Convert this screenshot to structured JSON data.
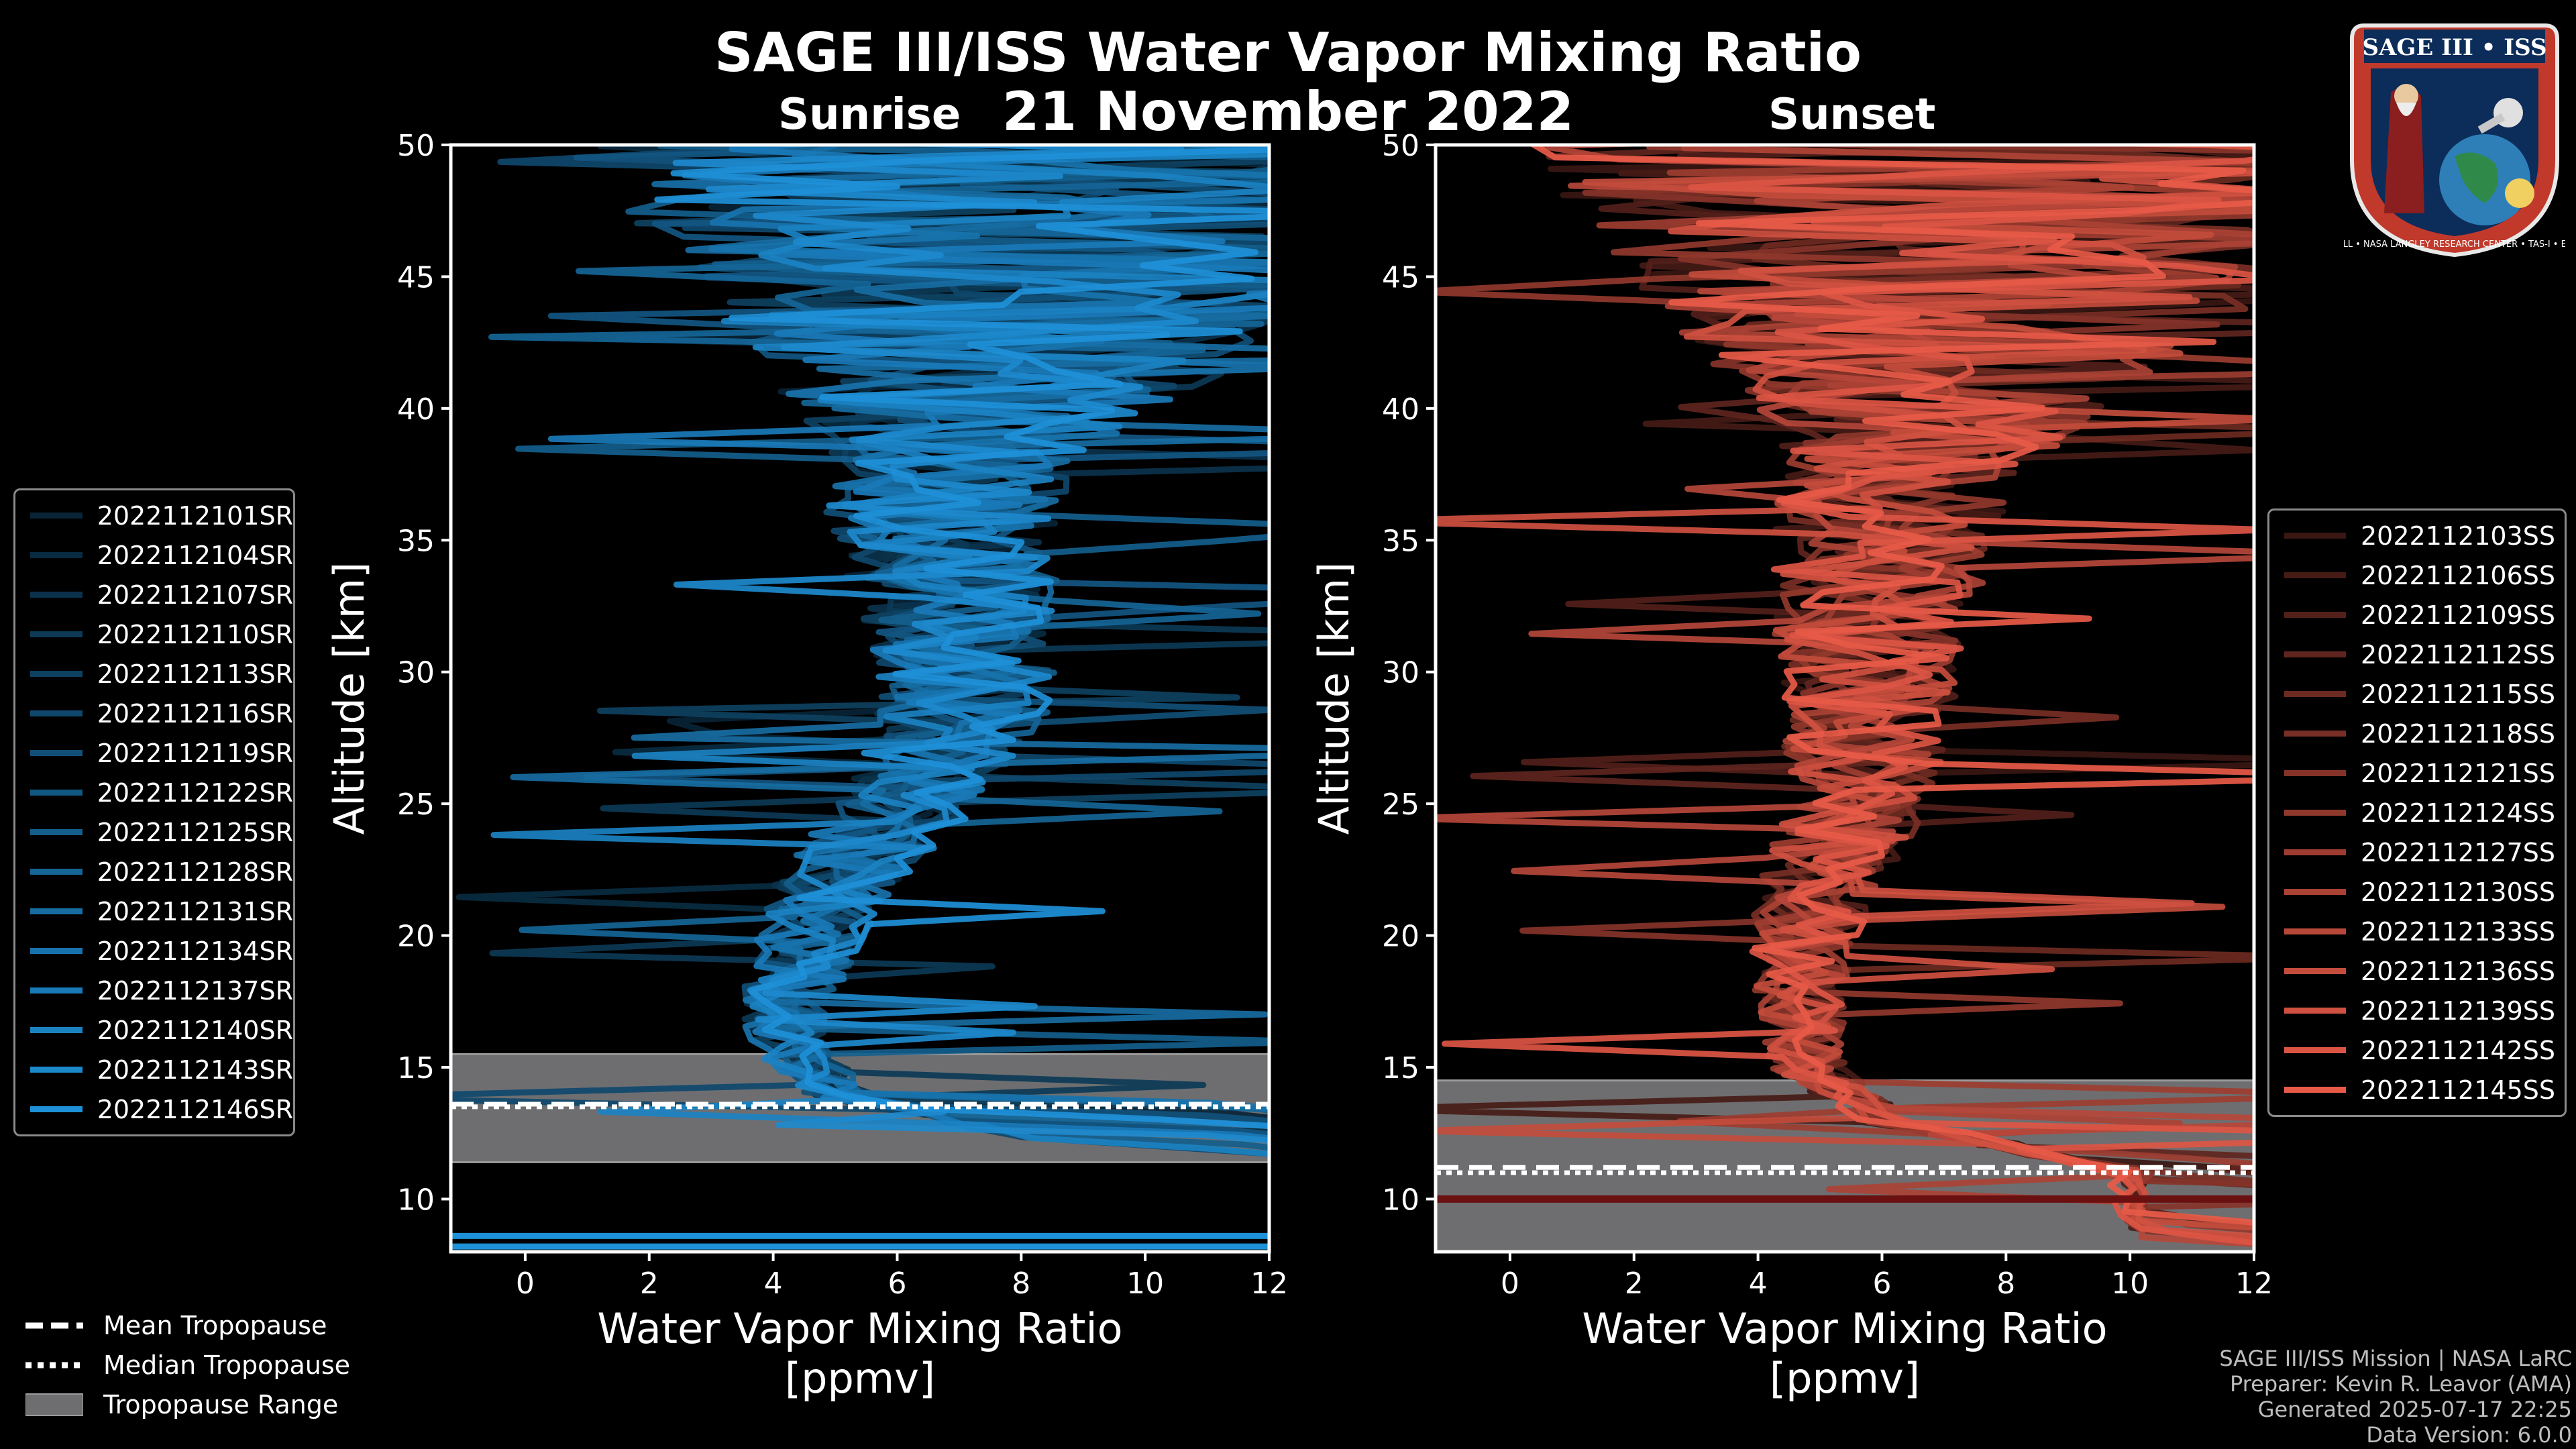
{
  "header": {
    "title": "SAGE III/ISS Water Vapor Mixing Ratio",
    "date": "21 November 2022",
    "sunrise_label": "Sunrise",
    "sunset_label": "Sunset"
  },
  "chart_data": [
    {
      "type": "line",
      "panel": "Sunrise",
      "xlabel": "Water Vapor Mixing Ratio\n[ppmv]",
      "xlabel_line1": "Water Vapor Mixing Ratio",
      "xlabel_line2": "[ppmv]",
      "ylabel": "Altitude [km]",
      "xlim": [
        -1.2,
        12
      ],
      "ylim": [
        8,
        50
      ],
      "xticks": [
        0,
        2,
        4,
        6,
        8,
        10,
        12
      ],
      "yticks": [
        10,
        15,
        20,
        25,
        30,
        35,
        40,
        45,
        50
      ],
      "tropopause": {
        "mean_km": 13.6,
        "median_km": 13.5,
        "range_km": [
          11.4,
          15.5
        ]
      },
      "series_color": "#1e90d8",
      "series": [
        "2022112101SR",
        "2022112104SR",
        "2022112107SR",
        "2022112110SR",
        "2022112113SR",
        "2022112116SR",
        "2022112119SR",
        "2022112122SR",
        "2022112125SR",
        "2022112128SR",
        "2022112131SR",
        "2022112134SR",
        "2022112137SR",
        "2022112140SR",
        "2022112143SR",
        "2022112146SR"
      ],
      "mean_profile": {
        "altitudes_km": [
          12,
          14,
          16,
          18,
          20,
          22,
          25,
          28,
          30,
          33,
          36,
          40,
          45,
          50
        ],
        "values_ppmv": [
          9,
          5,
          4.2,
          4.3,
          4.6,
          5.0,
          6.2,
          7.0,
          7.2,
          6.9,
          6.7,
          7.3,
          8.0,
          8.5
        ]
      }
    },
    {
      "type": "line",
      "panel": "Sunset",
      "xlabel": "Water Vapor Mixing Ratio\n[ppmv]",
      "xlabel_line1": "Water Vapor Mixing Ratio",
      "xlabel_line2": "[ppmv]",
      "ylabel": "Altitude [km]",
      "xlim": [
        -1.2,
        12
      ],
      "ylim": [
        8,
        50
      ],
      "xticks": [
        0,
        2,
        4,
        6,
        8,
        10,
        12
      ],
      "yticks": [
        10,
        15,
        20,
        25,
        30,
        35,
        40,
        45,
        50
      ],
      "tropopause": {
        "mean_km": 11.2,
        "median_km": 11.0,
        "range_km": [
          8,
          14.5
        ]
      },
      "series_color": "#e85a48",
      "series": [
        "2022112103SS",
        "2022112106SS",
        "2022112109SS",
        "2022112112SS",
        "2022112115SS",
        "2022112118SS",
        "2022112121SS",
        "2022112124SS",
        "2022112127SS",
        "2022112130SS",
        "2022112133SS",
        "2022112136SS",
        "2022112139SS",
        "2022112142SS",
        "2022112145SS"
      ],
      "mean_profile": {
        "altitudes_km": [
          11,
          13,
          15,
          18,
          20,
          22,
          25,
          28,
          30,
          33,
          36,
          40,
          45,
          50
        ],
        "values_ppmv": [
          10,
          6,
          4.8,
          4.6,
          4.8,
          5.0,
          5.6,
          5.8,
          5.8,
          5.9,
          6.1,
          6.8,
          7.5,
          8.0
        ]
      }
    }
  ],
  "bottom_legend": {
    "mean": "Mean Tropopause",
    "median": "Median Tropopause",
    "range": "Tropopause Range"
  },
  "footer": {
    "line1": "SAGE III/ISS Mission | NASA LaRC",
    "line2": "Preparer: Kevin R. Leavor (AMA)",
    "line3": "Generated 2025-07-17 22:25",
    "line4": "Data Version: 6.0.0"
  },
  "logo": {
    "title": "SAGE III • ISS",
    "ring_text": "BALL • NASA LANGLEY RESEARCH CENTER • TAS-I • ESA"
  }
}
